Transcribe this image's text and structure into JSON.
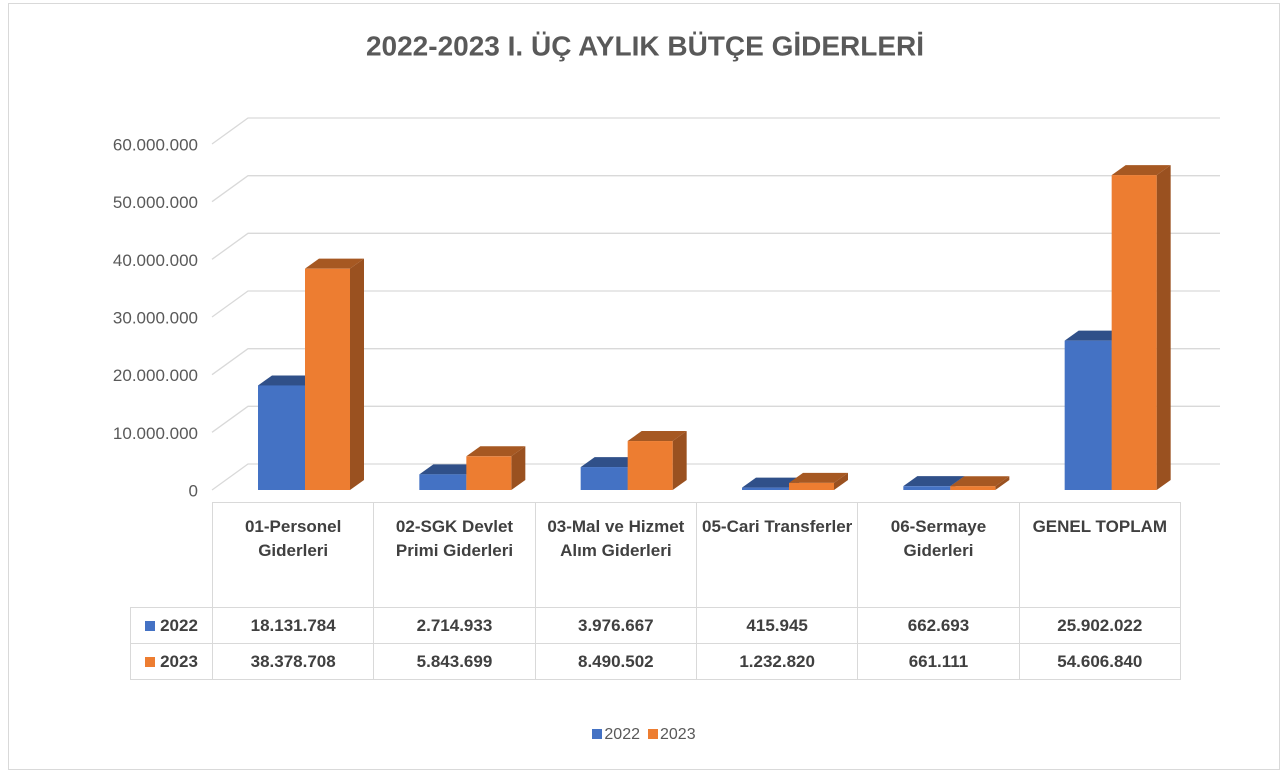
{
  "chart_data": {
    "type": "bar3d",
    "title": "2022-2023 I. ÜÇ AYLIK BÜTÇE GİDERLERİ",
    "categories": [
      "01-Personel Giderleri",
      "02-SGK Devlet Primi Giderleri",
      "03-Mal ve Hizmet Alım Giderleri",
      "05-Cari Transferler",
      "06-Sermaye Giderleri",
      "GENEL TOPLAM"
    ],
    "series": [
      {
        "name": "2022",
        "color": "#4472c4",
        "values": [
          18131784,
          2714933,
          3976667,
          415945,
          662693,
          25902022
        ],
        "value_labels": [
          "18.131.784",
          "2.714.933",
          "3.976.667",
          "415.945",
          "662.693",
          "25.902.022"
        ]
      },
      {
        "name": "2023",
        "color": "#ed7d31",
        "values": [
          38378708,
          5843699,
          8490502,
          1232820,
          661111,
          54606840
        ],
        "value_labels": [
          "38.378.708",
          "5.843.699",
          "8.490.502",
          "1.232.820",
          "661.111",
          "54.606.840"
        ]
      }
    ],
    "ylim": [
      0,
      60000000
    ],
    "yticks": [
      0,
      {
        "value": 10000000,
        "label": "10.000.000"
      },
      {
        "value": 20000000,
        "label": "20.000.000"
      },
      {
        "value": 30000000,
        "label": "30.000.000"
      },
      {
        "value": 40000000,
        "label": "40.000.000"
      },
      {
        "value": 50000000,
        "label": "50.000.000"
      },
      {
        "value": 60000000,
        "label": "60.000.000"
      }
    ],
    "grid": true
  }
}
